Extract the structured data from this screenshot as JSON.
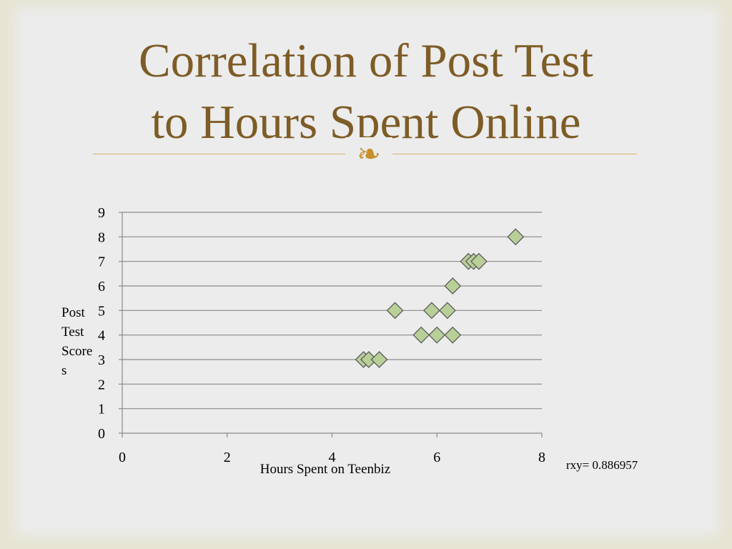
{
  "slide": {
    "title_line1": "Correlation of Post Test",
    "title_line2": "to Hours Spent Online",
    "ornament": "ornament-icon"
  },
  "chart_data": {
    "type": "scatter",
    "title": "",
    "xlabel": "Hours Spent on Teenbiz",
    "ylabel": "Post Test Scores",
    "xlim": [
      0,
      8
    ],
    "ylim": [
      0,
      9
    ],
    "x_ticks": [
      0,
      2,
      4,
      6,
      8
    ],
    "y_ticks": [
      0,
      1,
      2,
      3,
      4,
      5,
      6,
      7,
      8,
      9
    ],
    "grid": "horizontal",
    "marker": "diamond",
    "marker_color": "#b9cf98",
    "points": [
      {
        "x": 4.6,
        "y": 3
      },
      {
        "x": 4.7,
        "y": 3
      },
      {
        "x": 4.9,
        "y": 3
      },
      {
        "x": 5.2,
        "y": 5
      },
      {
        "x": 5.7,
        "y": 4
      },
      {
        "x": 5.9,
        "y": 5
      },
      {
        "x": 6.0,
        "y": 4
      },
      {
        "x": 6.2,
        "y": 5
      },
      {
        "x": 6.3,
        "y": 6
      },
      {
        "x": 6.3,
        "y": 4
      },
      {
        "x": 6.6,
        "y": 7
      },
      {
        "x": 6.7,
        "y": 7
      },
      {
        "x": 6.8,
        "y": 7
      },
      {
        "x": 7.5,
        "y": 8
      }
    ],
    "annotation": "rxy= 0.886957"
  }
}
